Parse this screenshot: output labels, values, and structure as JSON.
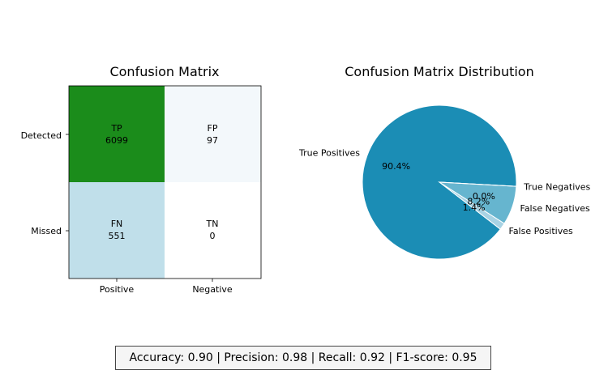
{
  "chart_data": [
    {
      "type": "heatmap",
      "title": "Confusion Matrix",
      "row_labels": [
        "Detected",
        "Missed"
      ],
      "col_labels": [
        "Positive",
        "Negative"
      ],
      "cells": [
        [
          {
            "abbr": "TP",
            "value": 6099,
            "color": "#1b8c1b"
          },
          {
            "abbr": "FP",
            "value": 97,
            "color": "#f3f8fb"
          }
        ],
        [
          {
            "abbr": "FN",
            "value": 551,
            "color": "#c0dfea"
          },
          {
            "abbr": "TN",
            "value": 0,
            "color": "#ffffff"
          }
        ]
      ]
    },
    {
      "type": "pie",
      "title": "Confusion Matrix Distribution",
      "slices": [
        {
          "label": "True Positives",
          "value": 6099,
          "pct_label": "90.4%",
          "color": "#1b8db5"
        },
        {
          "label": "False Positives",
          "value": 97,
          "pct_label": "1.4%",
          "color": "#a8d3e4"
        },
        {
          "label": "False Negatives",
          "value": 551,
          "pct_label": "8.2%",
          "color": "#66b5cf"
        },
        {
          "label": "True Negatives",
          "value": 0,
          "pct_label": "0.0%",
          "color": "#ffffff"
        }
      ]
    }
  ],
  "metrics_text": "Accuracy: 0.90 | Precision: 0.98 | Recall: 0.92 | F1-score: 0.95"
}
